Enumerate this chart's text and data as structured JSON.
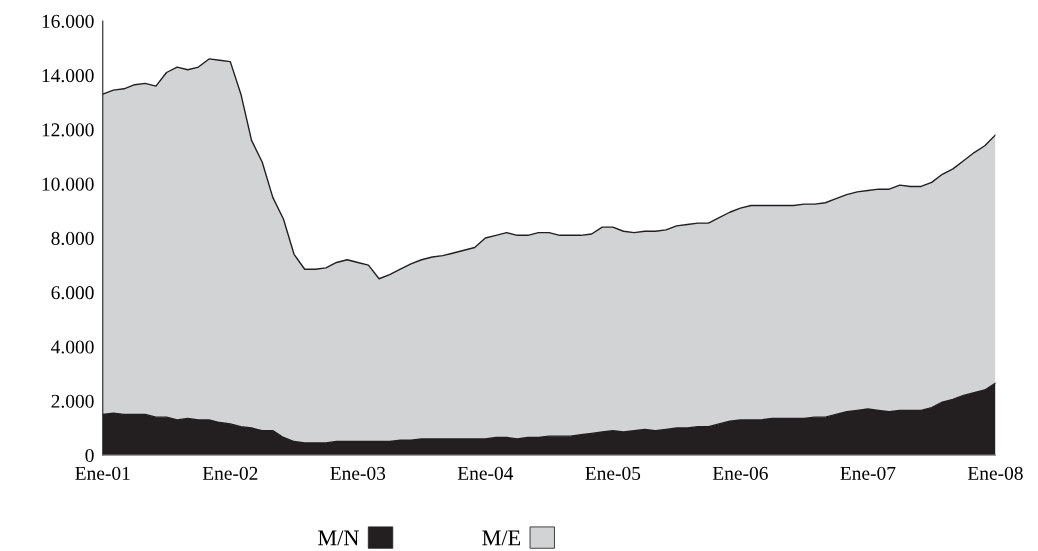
{
  "chart_data": {
    "type": "area",
    "stacked": true,
    "categories": [
      "Ene-01",
      null,
      null,
      null,
      null,
      null,
      null,
      null,
      null,
      null,
      null,
      null,
      "Ene-02",
      null,
      null,
      null,
      null,
      null,
      null,
      null,
      null,
      null,
      null,
      null,
      "Ene-03",
      null,
      null,
      null,
      null,
      null,
      null,
      null,
      null,
      null,
      null,
      null,
      "Ene-04",
      null,
      null,
      null,
      null,
      null,
      null,
      null,
      null,
      null,
      null,
      null,
      "Ene-05",
      null,
      null,
      null,
      null,
      null,
      null,
      null,
      null,
      null,
      null,
      null,
      "Ene-06",
      null,
      null,
      null,
      null,
      null,
      null,
      null,
      null,
      null,
      null,
      null,
      "Ene-07",
      null,
      null,
      null,
      null,
      null,
      null,
      null,
      null,
      null,
      null,
      null,
      "Ene-08"
    ],
    "series": [
      {
        "name": "M/N",
        "color": "#231f20",
        "values": [
          1500,
          1550,
          1500,
          1500,
          1500,
          1400,
          1400,
          1300,
          1350,
          1300,
          1300,
          1200,
          1150,
          1050,
          1000,
          900,
          900,
          650,
          500,
          450,
          450,
          450,
          500,
          500,
          500,
          500,
          500,
          500,
          550,
          550,
          600,
          600,
          600,
          600,
          600,
          600,
          600,
          650,
          650,
          600,
          650,
          650,
          700,
          700,
          700,
          750,
          800,
          850,
          900,
          850,
          900,
          950,
          900,
          950,
          1000,
          1000,
          1050,
          1050,
          1150,
          1250,
          1300,
          1300,
          1300,
          1350,
          1350,
          1350,
          1350,
          1400,
          1400,
          1500,
          1600,
          1650,
          1700,
          1650,
          1600,
          1650,
          1650,
          1650,
          1750,
          1950,
          2050,
          2200,
          2300,
          2400,
          2650
        ]
      },
      {
        "name": "M/E",
        "color": "#d1d3d4",
        "values": [
          11800,
          11900,
          12000,
          12150,
          12200,
          12200,
          12700,
          13000,
          12850,
          13000,
          13300,
          13350,
          13350,
          12250,
          10600,
          9900,
          8600,
          8050,
          6900,
          6400,
          6400,
          6450,
          6600,
          6700,
          6600,
          6500,
          6000,
          6150,
          6300,
          6500,
          6600,
          6700,
          6750,
          6850,
          6950,
          7050,
          7400,
          7450,
          7550,
          7500,
          7450,
          7550,
          7500,
          7400,
          7400,
          7350,
          7350,
          7550,
          7500,
          7400,
          7300,
          7300,
          7350,
          7350,
          7450,
          7500,
          7500,
          7500,
          7600,
          7700,
          7800,
          7900,
          7900,
          7850,
          7850,
          7850,
          7900,
          7850,
          7900,
          7950,
          8000,
          8050,
          8050,
          8150,
          8200,
          8300,
          8250,
          8250,
          8300,
          8400,
          8500,
          8650,
          8850,
          9000,
          9150
        ]
      }
    ],
    "ylim": [
      0,
      16000
    ],
    "yticks": [
      {
        "value": 0,
        "label": "0"
      },
      {
        "value": 2000,
        "label": "2.000"
      },
      {
        "value": 4000,
        "label": "4.000"
      },
      {
        "value": 6000,
        "label": "6.000"
      },
      {
        "value": 8000,
        "label": "8.000"
      },
      {
        "value": 10000,
        "label": "10.000"
      },
      {
        "value": 12000,
        "label": "12.000"
      },
      {
        "value": 14000,
        "label": "14.000"
      },
      {
        "value": 16000,
        "label": "16.000"
      }
    ],
    "legend": "bottom",
    "grid": false
  }
}
